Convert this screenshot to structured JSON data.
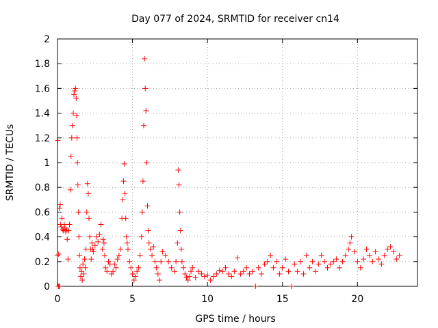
{
  "chart_data": {
    "type": "scatter",
    "title": "Day 077 of 2024, SRMTID for receiver cn14",
    "xlabel": "GPS time / hours",
    "ylabel": "SRMTID / TECUs",
    "xlim": [
      0,
      24
    ],
    "ylim": [
      0,
      2
    ],
    "xticks": [
      0,
      5,
      10,
      15,
      20
    ],
    "xtick_labels": [
      "0",
      "5",
      "10",
      "15",
      "20"
    ],
    "yticks": [
      0,
      0.2,
      0.4,
      0.6,
      0.8,
      1,
      1.2,
      1.4,
      1.6,
      1.8,
      2
    ],
    "ytick_labels": [
      "0",
      "0.2",
      "0.4",
      "0.6",
      "0.8",
      "1",
      "1.2",
      "1.4",
      "1.6",
      "1.8",
      "2"
    ],
    "grid": true,
    "marker": "+",
    "color": "#ff0000",
    "series": [
      {
        "name": "cn14",
        "x": [
          0.0,
          0.02,
          0.05,
          0.08,
          0.1,
          0.13,
          0.15,
          0.18,
          0.2,
          0.25,
          0.3,
          0.35,
          0.4,
          0.45,
          0.5,
          0.55,
          0.6,
          0.65,
          0.7,
          0.75,
          0.8,
          0.85,
          0.9,
          0.95,
          1.0,
          1.05,
          1.1,
          1.15,
          1.2,
          1.25,
          1.28,
          1.3,
          1.33,
          1.36,
          1.4,
          1.43,
          1.46,
          1.5,
          1.55,
          1.6,
          1.65,
          1.7,
          1.75,
          1.8,
          1.85,
          1.9,
          1.95,
          2.0,
          2.05,
          2.1,
          2.15,
          2.2,
          2.25,
          2.3,
          2.35,
          2.4,
          2.5,
          2.6,
          2.7,
          2.8,
          2.9,
          3.0,
          3.05,
          3.1,
          3.15,
          3.2,
          3.3,
          3.4,
          3.5,
          3.6,
          3.7,
          3.8,
          3.9,
          4.0,
          4.1,
          4.2,
          4.3,
          4.35,
          4.4,
          4.45,
          4.5,
          4.55,
          4.6,
          4.65,
          4.7,
          4.8,
          4.9,
          5.0,
          5.1,
          5.2,
          5.3,
          5.4,
          5.5,
          5.6,
          5.65,
          5.7,
          5.75,
          5.8,
          5.85,
          5.9,
          5.95,
          6.0,
          6.05,
          6.1,
          6.2,
          6.3,
          6.4,
          6.5,
          6.6,
          6.7,
          6.8,
          6.9,
          7.0,
          7.2,
          7.4,
          7.6,
          7.8,
          7.9,
          8.0,
          8.05,
          8.1,
          8.15,
          8.2,
          8.25,
          8.3,
          8.4,
          8.5,
          8.6,
          8.7,
          8.8,
          8.9,
          9.0,
          9.2,
          9.4,
          9.6,
          9.8,
          10.0,
          10.2,
          10.4,
          10.6,
          10.8,
          11.0,
          11.2,
          11.4,
          11.6,
          11.8,
          12.0,
          12.2,
          12.4,
          12.6,
          12.8,
          13.0,
          13.2,
          13.4,
          13.6,
          13.8,
          14.0,
          14.2,
          14.4,
          14.6,
          14.8,
          15.0,
          15.2,
          15.4,
          15.6,
          15.8,
          16.0,
          16.2,
          16.4,
          16.6,
          16.8,
          17.0,
          17.2,
          17.4,
          17.6,
          17.8,
          18.0,
          18.2,
          18.4,
          18.6,
          18.8,
          19.0,
          19.2,
          19.4,
          19.5,
          19.6,
          19.8,
          20.0,
          20.2,
          20.4,
          20.6,
          20.8,
          21.0,
          21.2,
          21.4,
          21.6,
          21.8,
          22.0,
          22.2,
          22.4,
          22.6,
          22.8
        ],
        "y": [
          0.25,
          1.18,
          0.0,
          0.26,
          0.0,
          0.63,
          0.0,
          0.66,
          0.5,
          0.48,
          0.55,
          0.46,
          0.45,
          0.5,
          0.47,
          0.44,
          0.46,
          0.38,
          0.22,
          0.45,
          0.5,
          0.78,
          1.05,
          1.2,
          1.3,
          1.4,
          1.55,
          1.58,
          1.6,
          1.52,
          1.38,
          1.2,
          1.0,
          0.82,
          0.6,
          0.4,
          0.25,
          0.15,
          0.08,
          0.12,
          0.05,
          0.18,
          0.1,
          0.22,
          0.15,
          0.3,
          0.6,
          0.83,
          0.75,
          0.55,
          0.4,
          0.3,
          0.22,
          0.35,
          0.3,
          0.28,
          0.33,
          0.4,
          0.36,
          0.42,
          0.5,
          0.3,
          0.38,
          0.35,
          0.25,
          0.15,
          0.12,
          0.2,
          0.18,
          0.1,
          0.12,
          0.18,
          0.15,
          0.22,
          0.25,
          0.3,
          0.55,
          0.7,
          0.85,
          0.99,
          0.75,
          0.55,
          0.4,
          0.35,
          0.3,
          0.2,
          0.15,
          0.1,
          0.05,
          0.08,
          0.12,
          0.15,
          0.25,
          0.4,
          0.6,
          0.85,
          1.3,
          1.84,
          1.6,
          1.42,
          1.0,
          0.65,
          0.45,
          0.35,
          0.3,
          0.25,
          0.32,
          0.2,
          0.15,
          0.1,
          0.05,
          0.2,
          0.28,
          0.25,
          0.2,
          0.15,
          0.12,
          0.2,
          0.35,
          0.94,
          0.82,
          0.6,
          0.45,
          0.3,
          0.2,
          0.15,
          0.1,
          0.07,
          0.05,
          0.08,
          0.12,
          0.15,
          0.07,
          0.12,
          0.1,
          0.08,
          0.09,
          0.05,
          0.08,
          0.1,
          0.13,
          0.12,
          0.15,
          0.1,
          0.08,
          0.12,
          0.23,
          0.1,
          0.12,
          0.15,
          0.1,
          0.12,
          0.0,
          0.15,
          0.1,
          0.18,
          0.2,
          0.25,
          0.15,
          0.2,
          0.1,
          0.15,
          0.22,
          0.12,
          0.0,
          0.18,
          0.12,
          0.2,
          0.1,
          0.25,
          0.15,
          0.2,
          0.12,
          0.18,
          0.25,
          0.2,
          0.15,
          0.18,
          0.2,
          0.22,
          0.15,
          0.2,
          0.25,
          0.3,
          0.35,
          0.4,
          0.28,
          0.2,
          0.15,
          0.22,
          0.3,
          0.25,
          0.2,
          0.28,
          0.22,
          0.18,
          0.25,
          0.3,
          0.32,
          0.28,
          0.22,
          0.25
        ]
      }
    ]
  }
}
